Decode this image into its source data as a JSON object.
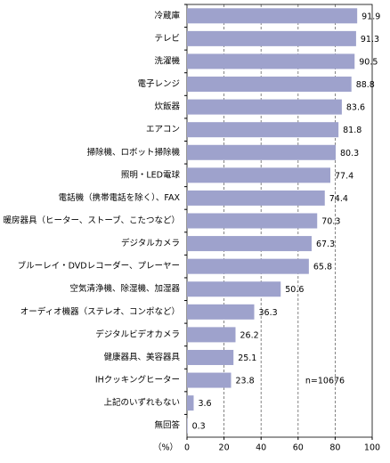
{
  "chart_data": {
    "type": "bar",
    "orientation": "horizontal",
    "categories": [
      "冷蔵庫",
      "テレビ",
      "洗濯機",
      "電子レンジ",
      "炊飯器",
      "エアコン",
      "掃除機、ロボット掃除機",
      "照明・LED電球",
      "電話機（携帯電話を除く）、FAX",
      "暖房器具（ヒーター、ストーブ、こたつなど）",
      "デジタルカメラ",
      "ブルーレイ・DVDレコーダー、プレーヤー",
      "空気清浄機、除湿機、加湿器",
      "オーディオ機器（ステレオ、コンポなど）",
      "デジタルビデオカメラ",
      "健康器具、美容器具",
      "IHクッキングヒーター",
      "上記のいずれもない",
      "無回答"
    ],
    "values": [
      91.9,
      91.3,
      90.5,
      88.8,
      83.6,
      81.8,
      80.3,
      77.4,
      74.4,
      70.3,
      67.3,
      65.8,
      50.6,
      36.3,
      26.2,
      25.1,
      23.8,
      3.6,
      0.3
    ],
    "color": "#9ea2cc",
    "xlim": [
      0,
      100
    ],
    "xticks": [
      0,
      20,
      40,
      60,
      80,
      100
    ],
    "x_label": "（%）",
    "annotation": "n=10676",
    "grid": true
  }
}
